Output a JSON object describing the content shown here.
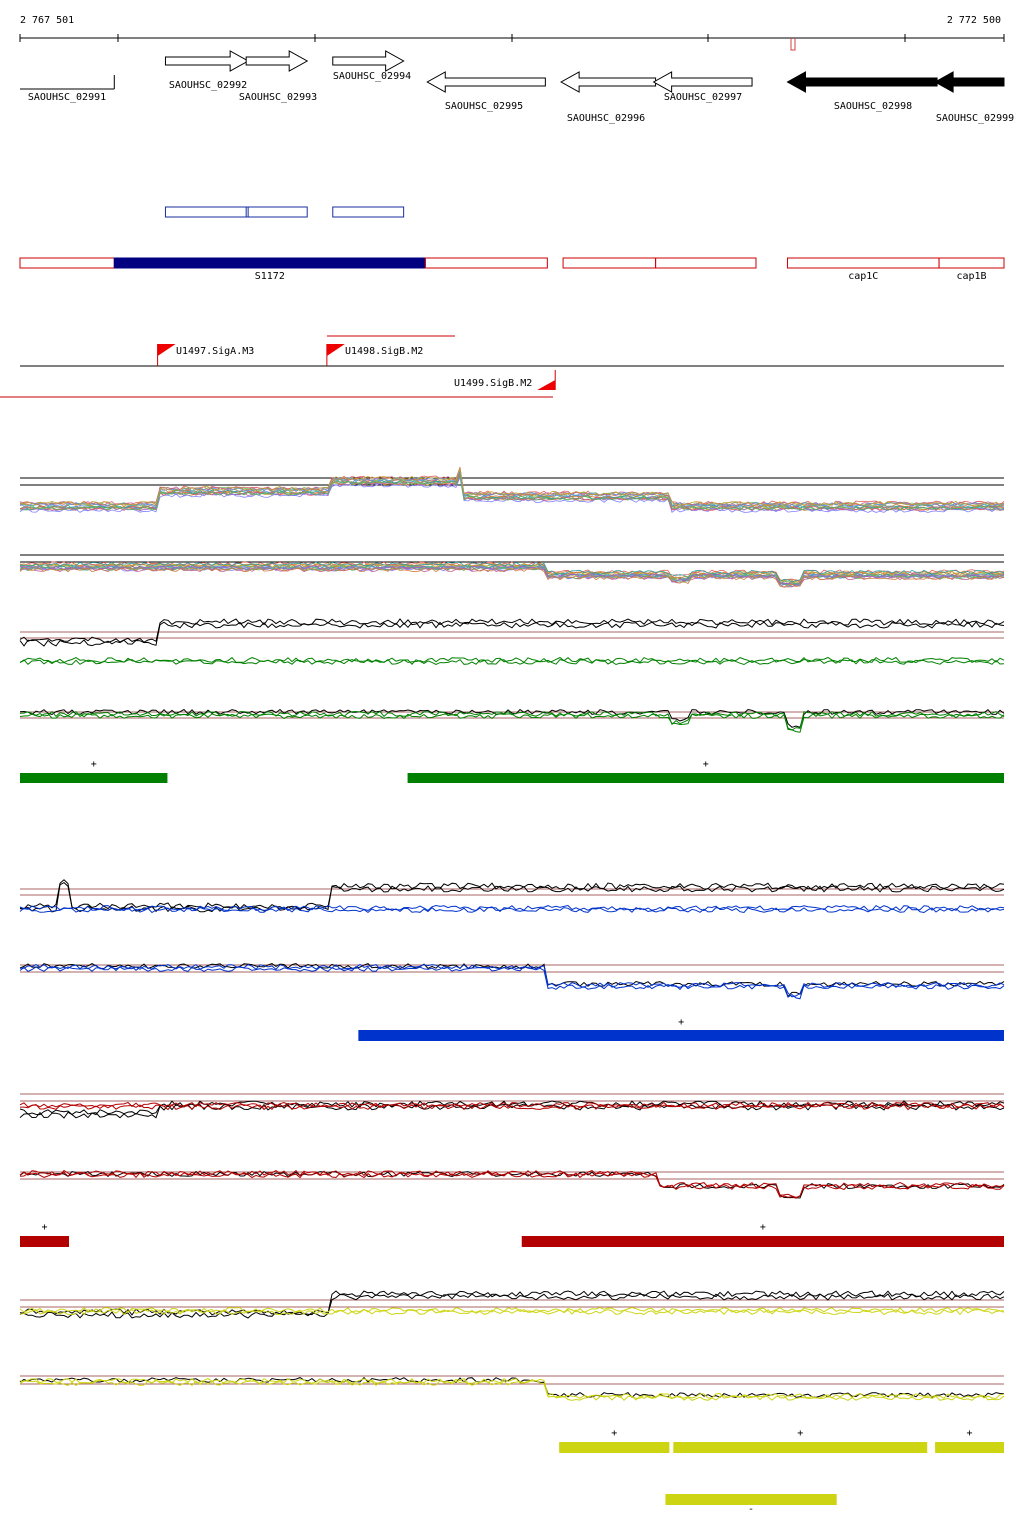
{
  "coordinates": {
    "start": "2 767 501",
    "end": "2 772 500",
    "start_bp": 2767501,
    "end_bp": 2772500
  },
  "genes": [
    {
      "label": "SAOUHSC_02991",
      "strand": "none",
      "start_bp": 2767501,
      "end_bp": 2767980,
      "fill": "#ffffff"
    },
    {
      "label": "SAOUHSC_02992",
      "strand": "+",
      "start_bp": 2768240,
      "end_bp": 2768660,
      "fill": "#ffffff"
    },
    {
      "label": "SAOUHSC_02993",
      "strand": "+",
      "start_bp": 2768650,
      "end_bp": 2768960,
      "fill": "#ffffff"
    },
    {
      "label": "SAOUHSC_02994",
      "strand": "+",
      "start_bp": 2769090,
      "end_bp": 2769450,
      "fill": "#ffffff"
    },
    {
      "label": "SAOUHSC_02995",
      "strand": "-",
      "start_bp": 2769570,
      "end_bp": 2770170,
      "fill": "#ffffff"
    },
    {
      "label": "SAOUHSC_02996",
      "strand": "-",
      "start_bp": 2770250,
      "end_bp": 2770730,
      "fill": "#ffffff"
    },
    {
      "label": "SAOUHSC_02997",
      "strand": "-",
      "start_bp": 2770720,
      "end_bp": 2771220,
      "fill": "#ffffff"
    },
    {
      "label": "SAOUHSC_02998",
      "strand": "-",
      "start_bp": 2771400,
      "end_bp": 2772160,
      "fill": "#000000"
    },
    {
      "label": "SAOUHSC_02999",
      "strand": "-",
      "start_bp": 2772150,
      "end_bp": 2772500,
      "fill": "#000000"
    }
  ],
  "orf_boxes": [
    {
      "start_bp": 2768240,
      "end_bp": 2768660
    },
    {
      "start_bp": 2768650,
      "end_bp": 2768960
    },
    {
      "start_bp": 2769090,
      "end_bp": 2769450
    }
  ],
  "transcript_segments": [
    {
      "label": "",
      "start_bp": 2767501,
      "end_bp": 2767980,
      "filled": false
    },
    {
      "label": "S1172",
      "start_bp": 2767980,
      "end_bp": 2769560,
      "filled": true
    },
    {
      "label": "",
      "start_bp": 2769560,
      "end_bp": 2770180,
      "filled": false
    },
    {
      "label": "",
      "start_bp": 2770260,
      "end_bp": 2770730,
      "filled": false
    },
    {
      "label": "",
      "start_bp": 2770730,
      "end_bp": 2771240,
      "filled": false
    },
    {
      "label": "cap1C",
      "start_bp": 2771400,
      "end_bp": 2772170,
      "filled": false
    },
    {
      "label": "cap1B",
      "start_bp": 2772170,
      "end_bp": 2772500,
      "filled": false
    }
  ],
  "promoters": [
    {
      "label": "U1497.SigA.M3",
      "position_bp": 2768200,
      "direction": "forward"
    },
    {
      "label": "U1498.SigB.M2",
      "position_bp": 2769060,
      "direction": "forward"
    },
    {
      "label": "U1499.SigB.M2",
      "position_bp": 2770220,
      "direction": "reverse"
    }
  ],
  "expression_tracks": {
    "all_conditions": {
      "upper_level_count": 2,
      "lower_level_count": 2
    },
    "groups": [
      {
        "color": "#008000",
        "segment_labels": [
          "+",
          "+"
        ],
        "segments": [
          {
            "strand": "+",
            "start_bp": 2767501,
            "end_bp": 2768250
          },
          {
            "strand": "+",
            "start_bp": 2769470,
            "end_bp": 2772500
          }
        ]
      },
      {
        "color": "#0033cc",
        "segment_labels": [
          "+"
        ],
        "segments": [
          {
            "strand": "+",
            "start_bp": 2769220,
            "end_bp": 2772500
          }
        ]
      },
      {
        "color": "#b30000",
        "segment_labels": [
          "+",
          "+"
        ],
        "segments": [
          {
            "strand": "+",
            "start_bp": 2767501,
            "end_bp": 2767750
          },
          {
            "strand": "+",
            "start_bp": 2770050,
            "end_bp": 2772500
          }
        ]
      },
      {
        "color": "#cdd513",
        "segment_labels": [
          "+",
          "+",
          "+",
          "-"
        ],
        "segments": [
          {
            "strand": "+",
            "start_bp": 2770240,
            "end_bp": 2770800
          },
          {
            "strand": "+",
            "start_bp": 2770820,
            "end_bp": 2772110
          },
          {
            "strand": "+",
            "start_bp": 2772150,
            "end_bp": 2772500
          },
          {
            "strand": "-",
            "start_bp": 2770780,
            "end_bp": 2771650
          }
        ]
      }
    ]
  }
}
